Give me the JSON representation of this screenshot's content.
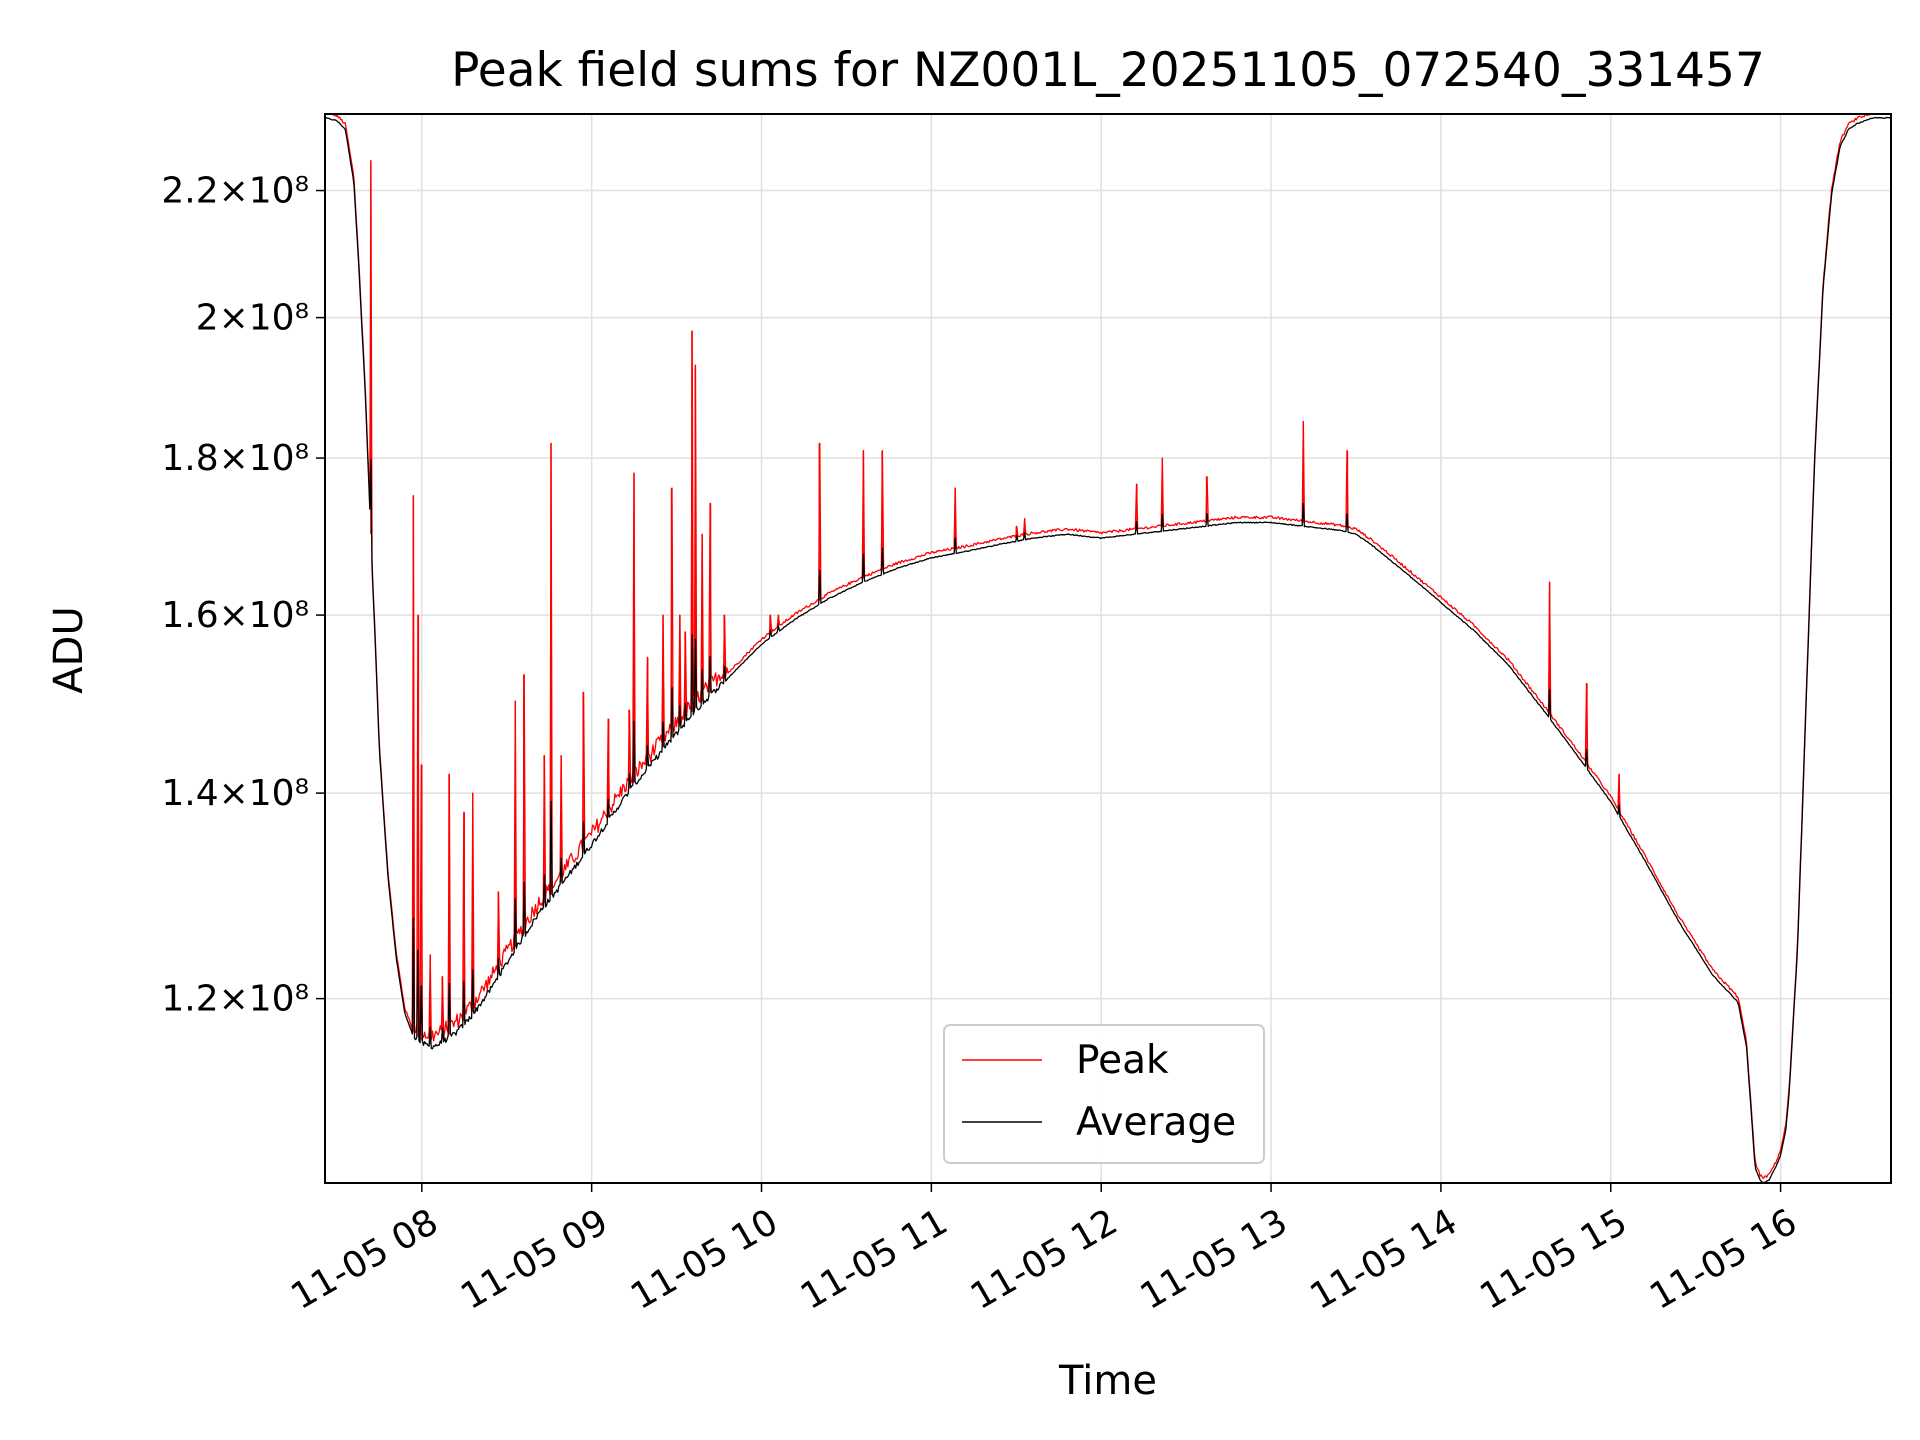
{
  "chart_data": {
    "type": "line",
    "title": "Peak field sums for NZ001L_20251105_072540_331457",
    "xlabel": "Time",
    "ylabel": "ADU",
    "yscale": "log",
    "grid": true,
    "legend_location": "lower-center",
    "xlim": [
      7.43,
      16.65
    ],
    "ylim": [
      104500000.0,
      233000000.0
    ],
    "x_ticks": [
      {
        "value": 8,
        "label": "11-05 08"
      },
      {
        "value": 9,
        "label": "11-05 09"
      },
      {
        "value": 10,
        "label": "11-05 10"
      },
      {
        "value": 11,
        "label": "11-05 11"
      },
      {
        "value": 12,
        "label": "11-05 12"
      },
      {
        "value": 13,
        "label": "11-05 13"
      },
      {
        "value": 14,
        "label": "11-05 14"
      },
      {
        "value": 15,
        "label": "11-05 15"
      },
      {
        "value": 16,
        "label": "11-05 16"
      }
    ],
    "y_ticks": [
      {
        "value": 120000000,
        "label": "1.2×10⁸"
      },
      {
        "value": 140000000,
        "label": "1.4×10⁸"
      },
      {
        "value": 160000000,
        "label": "1.6×10⁸"
      },
      {
        "value": 180000000,
        "label": "1.8×10⁸"
      },
      {
        "value": 200000000,
        "label": "2×10⁸"
      },
      {
        "value": 220000000,
        "label": "2.2×10⁸"
      }
    ],
    "x_unit": "hour of 2025-11-05",
    "series": [
      {
        "name": "Peak",
        "color": "#ff0000",
        "baseline_x": [
          7.43,
          7.5,
          7.55,
          7.6,
          7.63,
          7.67,
          7.7,
          7.73,
          7.75,
          7.8,
          7.85,
          7.9,
          7.95,
          8.0,
          8.05,
          8.1,
          8.2,
          8.3,
          8.4,
          8.5,
          8.6,
          8.7,
          8.8,
          9.0,
          9.2,
          9.4,
          9.6,
          9.8,
          10.0,
          10.2,
          10.4,
          10.6,
          10.8,
          11.0,
          11.2,
          11.4,
          11.6,
          11.8,
          12.0,
          12.2,
          12.4,
          12.6,
          12.8,
          13.0,
          13.2,
          13.4,
          13.5,
          13.6,
          13.8,
          14.0,
          14.2,
          14.4,
          14.6,
          14.8,
          15.0,
          15.2,
          15.4,
          15.6,
          15.75,
          15.8,
          15.85,
          15.88,
          15.9,
          15.93,
          15.97,
          16.0,
          16.03,
          16.05,
          16.1,
          16.15,
          16.2,
          16.25,
          16.3,
          16.35,
          16.4,
          16.45,
          16.5,
          16.55,
          16.6,
          16.65
        ],
        "baseline_y": [
          233000000.0,
          232500000.0,
          231000000.0,
          222000000.0,
          208000000.0,
          188000000.0,
          170000000.0,
          155000000.0,
          145000000.0,
          132000000.0,
          124000000.0,
          119000000.0,
          117000000.0,
          116300000.0,
          116000000.0,
          116200000.0,
          117200000.0,
          118800000.0,
          121000000.0,
          123500000.0,
          126000000.0,
          128500000.0,
          130500000.0,
          135000000.0,
          140000000.0,
          144500000.0,
          149000000.0,
          153000000.0,
          157000000.0,
          160000000.0,
          162500000.0,
          164500000.0,
          166200000.0,
          167500000.0,
          168300000.0,
          169200000.0,
          170000000.0,
          170500000.0,
          170000000.0,
          170500000.0,
          171000000.0,
          171500000.0,
          172000000.0,
          172000000.0,
          171500000.0,
          171000000.0,
          170500000.0,
          169000000.0,
          165500000.0,
          162000000.0,
          158500000.0,
          154500000.0,
          149500000.0,
          144500000.0,
          139500000.0,
          133500000.0,
          127500000.0,
          122500000.0,
          120000000.0,
          116000000.0,
          106000000.0,
          105000000.0,
          104800000.0,
          105000000.0,
          106000000.0,
          107000000.0,
          109000000.0,
          112000000.0,
          125000000.0,
          150000000.0,
          180000000.0,
          205000000.0,
          220000000.0,
          228000000.0,
          231000000.0,
          232000000.0,
          232500000.0,
          233000000.0,
          233000000.0,
          233000000.0
        ],
        "spikes": [
          {
            "x": 7.7,
            "y": 225000000.0
          },
          {
            "x": 7.95,
            "y": 175000000.0
          },
          {
            "x": 7.98,
            "y": 160000000.0
          },
          {
            "x": 8.0,
            "y": 143000000.0
          },
          {
            "x": 8.05,
            "y": 124000000.0
          },
          {
            "x": 8.12,
            "y": 122000000.0
          },
          {
            "x": 8.16,
            "y": 142000000.0
          },
          {
            "x": 8.25,
            "y": 138000000.0
          },
          {
            "x": 8.3,
            "y": 140000000.0
          },
          {
            "x": 8.45,
            "y": 130000000.0
          },
          {
            "x": 8.55,
            "y": 150000000.0
          },
          {
            "x": 8.6,
            "y": 153000000.0
          },
          {
            "x": 8.72,
            "y": 144000000.0
          },
          {
            "x": 8.76,
            "y": 182000000.0
          },
          {
            "x": 8.82,
            "y": 144000000.0
          },
          {
            "x": 8.95,
            "y": 151000000.0
          },
          {
            "x": 9.1,
            "y": 148000000.0
          },
          {
            "x": 9.22,
            "y": 149000000.0
          },
          {
            "x": 9.25,
            "y": 178000000.0
          },
          {
            "x": 9.33,
            "y": 155000000.0
          },
          {
            "x": 9.42,
            "y": 160000000.0
          },
          {
            "x": 9.47,
            "y": 176000000.0
          },
          {
            "x": 9.52,
            "y": 160000000.0
          },
          {
            "x": 9.55,
            "y": 158000000.0
          },
          {
            "x": 9.59,
            "y": 198000000.0
          },
          {
            "x": 9.61,
            "y": 193000000.0
          },
          {
            "x": 9.65,
            "y": 170000000.0
          },
          {
            "x": 9.7,
            "y": 174000000.0
          },
          {
            "x": 9.78,
            "y": 160000000.0
          },
          {
            "x": 10.05,
            "y": 160000000.0
          },
          {
            "x": 10.1,
            "y": 160000000.0
          },
          {
            "x": 10.34,
            "y": 182000000.0
          },
          {
            "x": 10.6,
            "y": 181000000.0
          },
          {
            "x": 10.71,
            "y": 181000000.0
          },
          {
            "x": 11.14,
            "y": 176000000.0
          },
          {
            "x": 11.5,
            "y": 171000000.0
          },
          {
            "x": 11.55,
            "y": 172000000.0
          },
          {
            "x": 12.21,
            "y": 176500000.0
          },
          {
            "x": 12.36,
            "y": 180000000.0
          },
          {
            "x": 12.62,
            "y": 177500000.0
          },
          {
            "x": 13.19,
            "y": 185000000.0
          },
          {
            "x": 13.45,
            "y": 181000000.0
          },
          {
            "x": 14.64,
            "y": 164000000.0
          },
          {
            "x": 14.86,
            "y": 152000000.0
          },
          {
            "x": 15.05,
            "y": 142000000.0
          }
        ]
      },
      {
        "name": "Average",
        "color": "#000000",
        "offset_factor": 0.997
      }
    ]
  },
  "legend": {
    "peak_label": "Peak",
    "average_label": "Average"
  },
  "colors": {
    "peak": "#ff0000",
    "average": "#000000",
    "grid": "#e0e0e0"
  }
}
